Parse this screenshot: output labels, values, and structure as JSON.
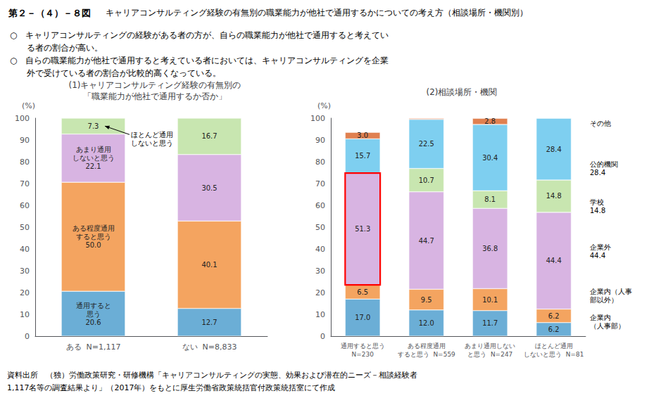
{
  "figure_number": "第２－（４）－８図",
  "title": "キャリアコンサルティング経験の有無別の職業能力が他社で通用するかについての考え方（相談場所・機関別）",
  "notes": [
    "○　キャリアコンサルティングの経験がある者の方が、自らの職業能力が他社で通用すると考えてい",
    "る者の割合が高い。",
    "○　自らの職業能力が他社で通用すると考えている者においては、キャリアコンサルティングを企業",
    "外で受けている者の割合が比較的高くなっている。"
  ],
  "source": [
    "資料出所　（独）労働政策研究・研修機構「キャリアコンサルティングの実態、効果および潜在的ニーズ－相談経験者",
    "1,117名等の調査結果より」（2017年）をもとに厚生労働省政策統括官付政策統括室にて作成"
  ],
  "chart_data": [
    {
      "type": "bar",
      "stacked": true,
      "title": "(1)キャリアコンサルティング経験の有無別の\n「職業能力が他社で通用するか否か」",
      "categories": [
        "ある  N=1,117",
        "ない  N=8,833"
      ],
      "ylabel": "(%)",
      "ylim": [
        0,
        100
      ],
      "yticks": [
        0,
        10,
        20,
        30,
        40,
        50,
        60,
        70,
        80,
        90,
        100
      ],
      "grid": false,
      "data_labels": true,
      "series": [
        {
          "color": "#6baed6",
          "values": [
            20.6,
            12.7
          ],
          "value_labels": [
            "通用すると\n思う\n20.6",
            "12.7"
          ]
        },
        {
          "color": "#f4a460",
          "values": [
            50.0,
            40.1
          ],
          "value_labels": [
            "ある程度通用\nすると思う\n50.0",
            "40.1"
          ]
        },
        {
          "color": "#d8b4e2",
          "values": [
            22.1,
            30.5
          ],
          "value_labels": [
            "あまり通用\nしないと思う\n22.1",
            "30.5"
          ]
        },
        {
          "color": "#c8e6b0",
          "values": [
            7.3,
            16.7
          ],
          "value_labels": [
            "7.3",
            "16.7"
          ]
        }
      ],
      "annotations": [
        {
          "text": "ほとんど通用\nしないと思う",
          "category": "ある  N=1,117",
          "y": 96.35
        }
      ]
    },
    {
      "type": "bar",
      "stacked": true,
      "title": "(2)相談場所・機関",
      "categories": [
        "通用すると思う\nN=230",
        "ある程度通用\nすると思う  N=559",
        "あまり通用しない\nと思う  N=247",
        "ほとんど通用\nしないと思う  N=81"
      ],
      "ylabel": "(%)",
      "ylim": [
        0,
        100
      ],
      "yticks": [
        0,
        10,
        20,
        30,
        40,
        50,
        60,
        70,
        80,
        90,
        100
      ],
      "grid": false,
      "data_labels": true,
      "series": [
        {
          "color": "#6baed6",
          "values": [
            17.0,
            12.0,
            11.7,
            6.2
          ],
          "value_labels": [
            "17.0",
            "12.0",
            "11.7",
            "6.2"
          ]
        },
        {
          "color": "#f4a460",
          "values": [
            6.5,
            9.5,
            10.1,
            6.2
          ],
          "value_labels": [
            "6.5",
            "9.5",
            "10.1",
            "6.2"
          ]
        },
        {
          "color": "#d8b4e2",
          "values": [
            51.3,
            44.7,
            36.8,
            44.4
          ],
          "value_labels": [
            "51.3",
            "44.7",
            "36.8",
            "44.4"
          ]
        },
        {
          "color": "#c8e6b0",
          "values": [
            0.0,
            10.7,
            8.1,
            14.8
          ],
          "value_labels": [
            null,
            "10.7",
            "8.1",
            "14.8"
          ]
        },
        {
          "color": "#7ecff0",
          "values": [
            15.7,
            22.5,
            30.4,
            28.4
          ],
          "value_labels": [
            "15.7",
            "22.5",
            "30.4",
            "28.4"
          ]
        },
        {
          "color": "#e08050",
          "values": [
            3.0,
            0.5,
            2.8,
            0.0
          ],
          "value_labels": [
            "3.0",
            null,
            "2.8",
            null
          ]
        }
      ],
      "box": {
        "category": "通用すると思う\nN=230",
        "y": 23.5,
        "height": 51.3,
        "color": "red"
      },
      "annotations": [
        {
          "text": "その他",
          "y": 97.5
        },
        {
          "text": "公的機関\n28.4",
          "y": 77.0
        },
        {
          "text": "学校\n14.8",
          "y": 59.5
        },
        {
          "text": "企業外\n44.4",
          "y": 39.0
        },
        {
          "text": "企業内（人事\n部以外）",
          "y": 18.5
        },
        {
          "text": "企業内\n（人事部）",
          "y": 6.5
        }
      ]
    }
  ]
}
